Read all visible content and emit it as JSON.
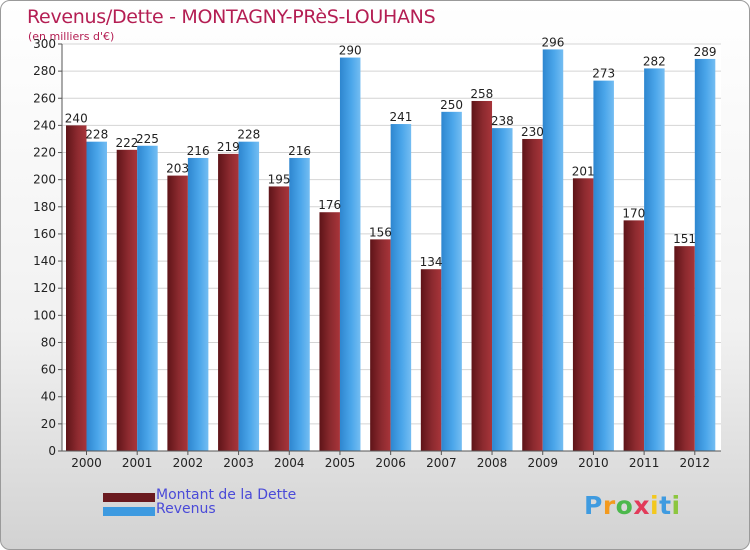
{
  "title": "Revenus/Dette - MONTAGNY-PRèS-LOUHANS",
  "subtitle": "(en milliers d'€)",
  "colors": {
    "debt": "#7a1f24",
    "debt_light": "#a8353a",
    "revenue": "#3d9ae0",
    "revenue_light": "#7cc0f2",
    "title": "#b41e53",
    "legend_text": "#4a4ad8"
  },
  "chart_data": {
    "type": "bar",
    "title": "Revenus/Dette - MONTAGNY-PRèS-LOUHANS",
    "ylabel": "(en milliers d'€)",
    "xlabel": "",
    "ylim": [
      0,
      300
    ],
    "y_ticks": [
      0,
      20,
      40,
      60,
      80,
      100,
      120,
      140,
      160,
      180,
      200,
      220,
      240,
      260,
      280,
      300
    ],
    "grid": true,
    "legend_position": "bottom-left",
    "categories": [
      "2000",
      "2001",
      "2002",
      "2003",
      "2004",
      "2005",
      "2006",
      "2007",
      "2008",
      "2009",
      "2010",
      "2011",
      "2012"
    ],
    "series": [
      {
        "name": "Montant de la Dette",
        "key": "debt",
        "values": [
          240,
          222,
          203,
          219,
          195,
          176,
          156,
          134,
          258,
          230,
          201,
          170,
          151
        ]
      },
      {
        "name": "Revenus",
        "key": "revenue",
        "values": [
          228,
          225,
          216,
          228,
          216,
          290,
          241,
          250,
          238,
          296,
          273,
          282,
          289
        ]
      }
    ]
  },
  "legend": {
    "items": [
      {
        "label": "Montant de la Dette"
      },
      {
        "label": "Revenus"
      }
    ]
  },
  "logo": {
    "letters": [
      {
        "char": "P",
        "color": "#3f9be0"
      },
      {
        "char": "r",
        "color": "#f39a1e"
      },
      {
        "char": "o",
        "color": "#4cb84c"
      },
      {
        "char": "x",
        "color": "#e23b5a"
      },
      {
        "char": "i",
        "color": "#f3c81e"
      },
      {
        "char": "t",
        "color": "#3f9be0"
      },
      {
        "char": "i",
        "color": "#8cc63f"
      }
    ]
  }
}
